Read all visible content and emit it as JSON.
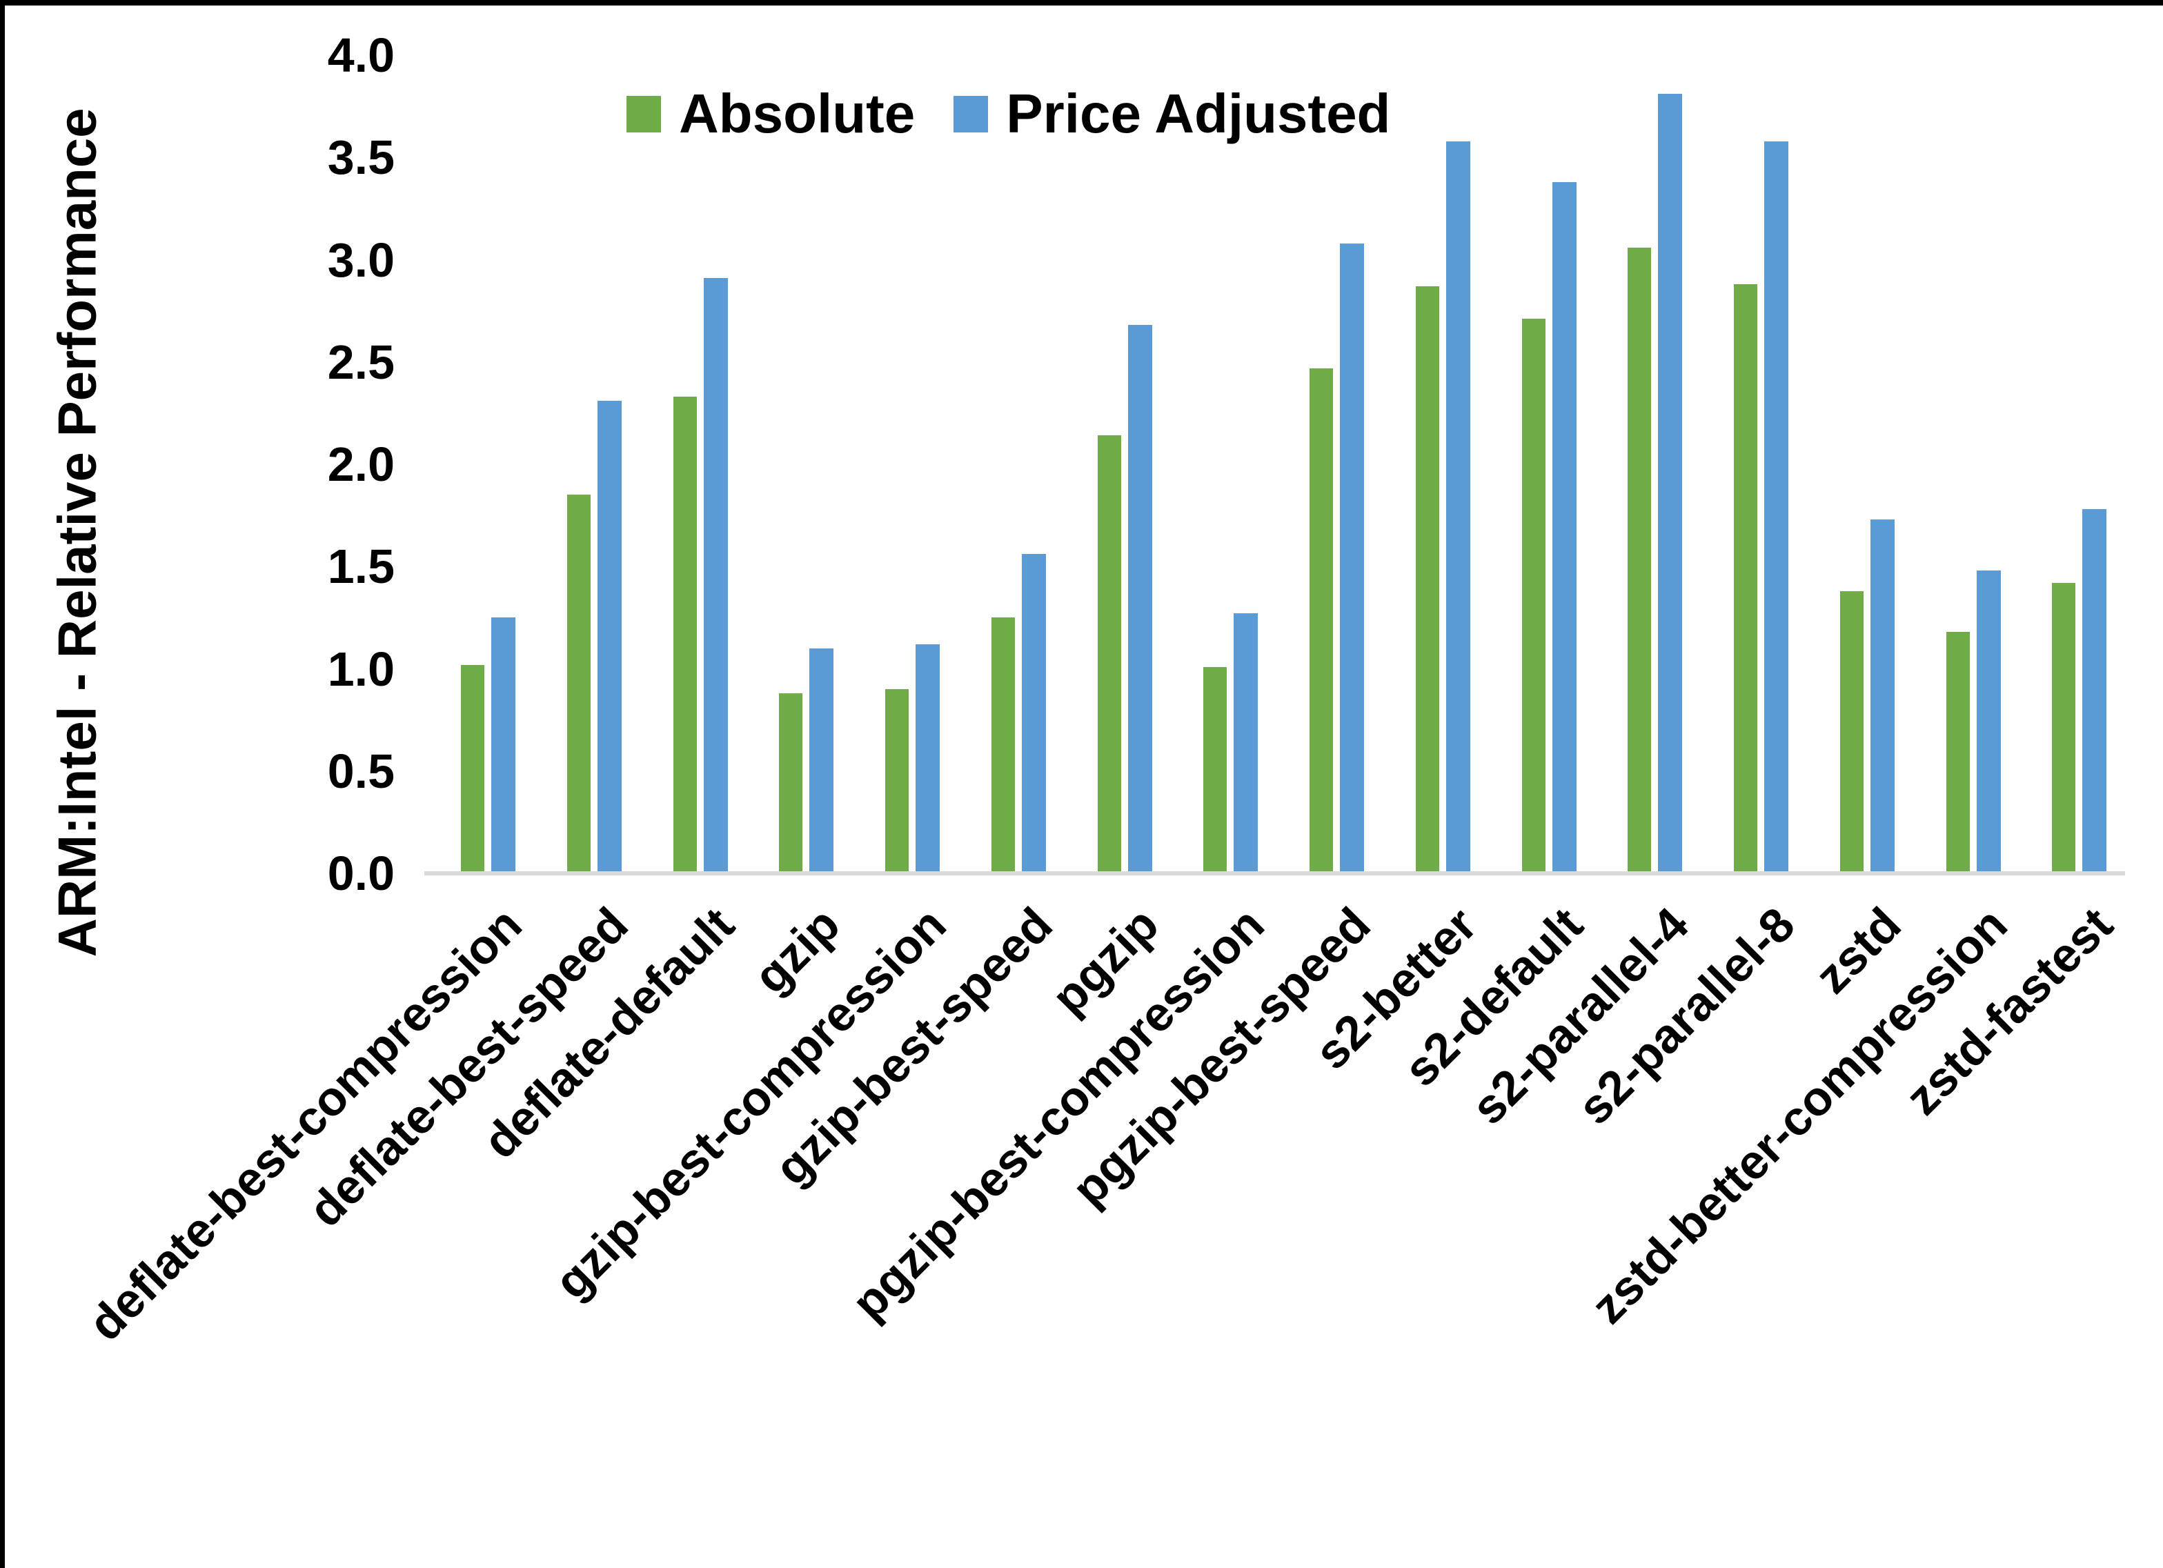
{
  "chart_data": {
    "type": "bar",
    "title": "",
    "xlabel": "",
    "ylabel": "ARM:Intel - Relative Performance",
    "ylim": [
      0.0,
      4.0
    ],
    "ytick_step": 0.5,
    "ytick_labels": [
      "0.0",
      "0.5",
      "1.0",
      "1.5",
      "2.0",
      "2.5",
      "3.0",
      "3.5",
      "4.0"
    ],
    "grid": false,
    "legend_position": "top-center",
    "categories": [
      "deflate-best-compression",
      "deflate-best-speed",
      "deflate-default",
      "gzip",
      "gzip-best-compression",
      "gzip-best-speed",
      "pgzip",
      "pgzip-best-compression",
      "pgzip-best-speed",
      "s2-better",
      "s2-default",
      "s2-parallel-4",
      "s2-parallel-8",
      "zstd",
      "zstd-better-compression",
      "zstd-fastest"
    ],
    "series": [
      {
        "name": "Absolute",
        "color": "#6FAC47",
        "values": [
          1.02,
          1.85,
          2.33,
          0.88,
          0.9,
          1.25,
          2.14,
          1.01,
          2.47,
          2.87,
          2.71,
          3.06,
          2.88,
          1.38,
          1.18,
          1.42
        ]
      },
      {
        "name": "Price Adjusted",
        "color": "#5B9BD5",
        "values": [
          1.25,
          2.31,
          2.91,
          1.1,
          1.12,
          1.56,
          2.68,
          1.27,
          3.08,
          3.58,
          3.38,
          3.81,
          3.58,
          1.73,
          1.48,
          1.78
        ]
      }
    ]
  },
  "colors": {
    "absolute": "#6FAC47",
    "price_adjusted": "#5B9BD5",
    "axis_line": "#D9D9D9",
    "text": "#000000",
    "border": "#000000",
    "background": "#FFFFFF"
  }
}
